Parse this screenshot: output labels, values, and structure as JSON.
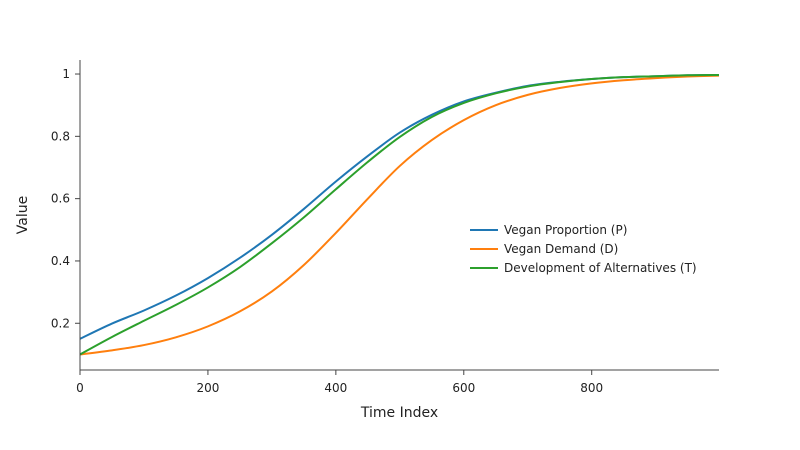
{
  "chart_data": {
    "type": "line",
    "xlabel": "Time Index",
    "ylabel": "Value",
    "xlim": [
      0,
      999
    ],
    "ylim": [
      0.05,
      1.045
    ],
    "grid": false,
    "legend_position": "inside-right",
    "x_ticks": [
      0,
      200,
      400,
      600,
      800
    ],
    "x_tick_labels": [
      "0",
      "200",
      "400",
      "600",
      "800"
    ],
    "y_ticks": [
      0.2,
      0.4,
      0.6,
      0.8,
      1
    ],
    "y_tick_labels": [
      "0.2",
      "0.4",
      "0.6",
      "0.8",
      "1"
    ],
    "x": [
      0,
      50,
      100,
      150,
      200,
      250,
      300,
      350,
      400,
      450,
      500,
      550,
      600,
      650,
      700,
      750,
      800,
      850,
      900,
      950,
      999
    ],
    "series": [
      {
        "name": "Vegan Proportion (P)",
        "color": "#1f77b4",
        "values": [
          0.15,
          0.199,
          0.241,
          0.289,
          0.345,
          0.41,
          0.484,
          0.567,
          0.655,
          0.737,
          0.812,
          0.869,
          0.912,
          0.94,
          0.962,
          0.975,
          0.984,
          0.99,
          0.993,
          0.996,
          0.997
        ]
      },
      {
        "name": "Vegan Demand (D)",
        "color": "#ff7f0e",
        "values": [
          0.1,
          0.113,
          0.13,
          0.155,
          0.19,
          0.238,
          0.302,
          0.387,
          0.49,
          0.6,
          0.705,
          0.788,
          0.852,
          0.9,
          0.933,
          0.955,
          0.97,
          0.98,
          0.987,
          0.992,
          0.995
        ]
      },
      {
        "name": "Development of Alternatives (T)",
        "color": "#2ca02c",
        "values": [
          0.1,
          0.156,
          0.208,
          0.259,
          0.315,
          0.38,
          0.457,
          0.54,
          0.63,
          0.718,
          0.798,
          0.862,
          0.907,
          0.938,
          0.96,
          0.974,
          0.984,
          0.99,
          0.993,
          0.996,
          0.997
        ]
      }
    ]
  }
}
